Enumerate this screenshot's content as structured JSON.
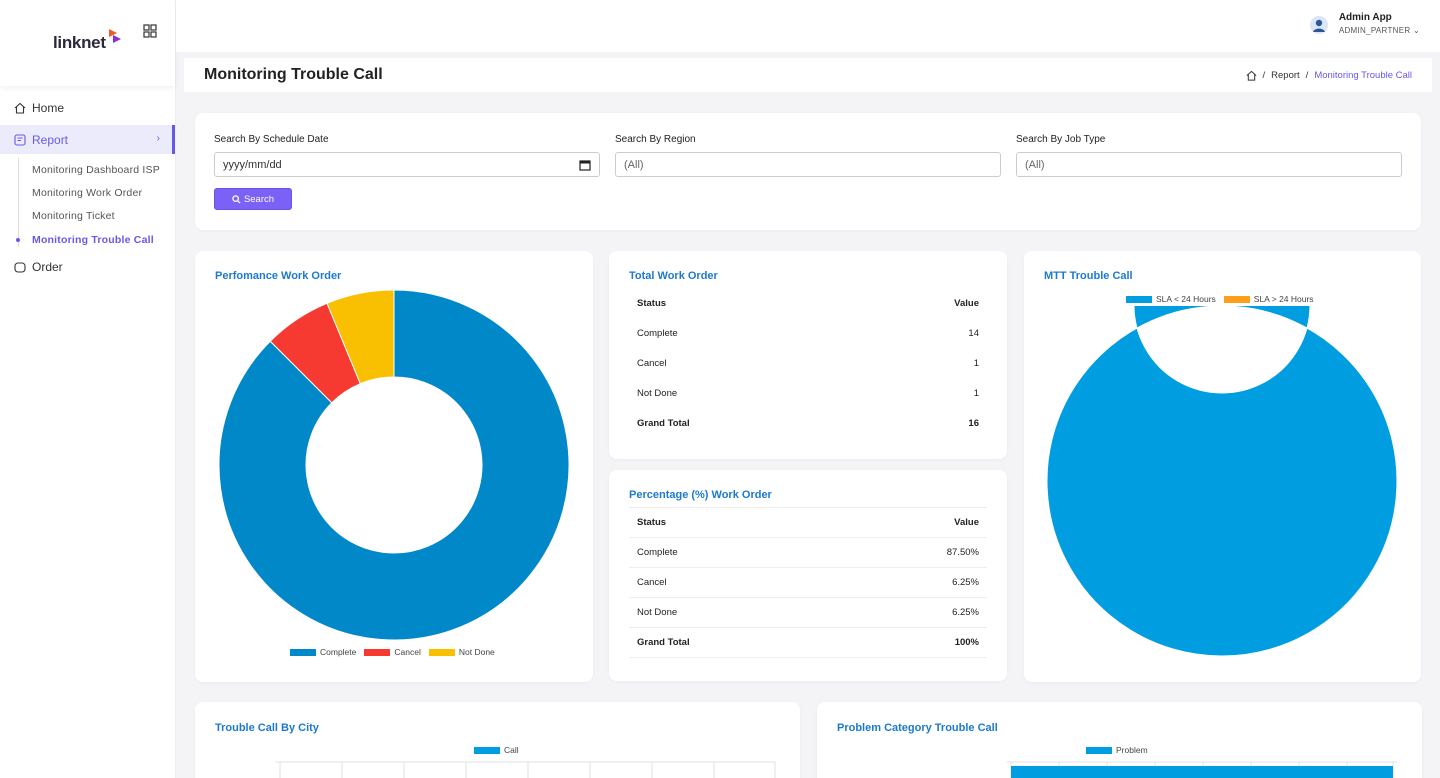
{
  "brand": {
    "logo_text": "linknet"
  },
  "user": {
    "name": "Admin App",
    "role": "ADMIN_PARTNER"
  },
  "sidebar": {
    "items": [
      {
        "label": "Home",
        "icon": "home-icon"
      },
      {
        "label": "Report",
        "icon": "report-icon",
        "active": true
      },
      {
        "label": "Order",
        "icon": "order-icon"
      }
    ],
    "report_sub": [
      {
        "label": "Monitoring Dashboard ISP"
      },
      {
        "label": "Monitoring Work Order"
      },
      {
        "label": "Monitoring Ticket"
      },
      {
        "label": "Monitoring Trouble Call",
        "active": true
      }
    ]
  },
  "page": {
    "title": "Monitoring Trouble Call",
    "breadcrumb": [
      "Report",
      "Monitoring Trouble Call"
    ]
  },
  "filters": {
    "date_label": "Search By Schedule Date",
    "date_placeholder": "yyyy/mm/dd",
    "region_label": "Search By Region",
    "region_value": "(All)",
    "jobtype_label": "Search By Job Type",
    "jobtype_value": "(All)",
    "search_label": "Search"
  },
  "performance": {
    "title": "Perfomance Work Order",
    "legend": [
      "Complete",
      "Cancel",
      "Not Done"
    ]
  },
  "total_wo": {
    "title": "Total Work Order",
    "header": [
      "Status",
      "Value"
    ],
    "rows": [
      [
        "Complete",
        "14"
      ],
      [
        "Cancel",
        "1"
      ],
      [
        "Not Done",
        "1"
      ]
    ],
    "total": [
      "Grand Total",
      "16"
    ]
  },
  "pct_wo": {
    "title": "Percentage (%) Work Order",
    "header": [
      "Status",
      "Value"
    ],
    "rows": [
      [
        "Complete",
        "87.50%"
      ],
      [
        "Cancel",
        "6.25%"
      ],
      [
        "Not Done",
        "6.25%"
      ]
    ],
    "total": [
      "Grand Total",
      "100%"
    ]
  },
  "mtt": {
    "title": "MTT Trouble Call",
    "legend": [
      "SLA < 24 Hours",
      "SLA > 24 Hours"
    ]
  },
  "city": {
    "title": "Trouble Call By City",
    "legend": "Call"
  },
  "problem": {
    "title": "Problem Category Trouble Call",
    "legend": "Problem"
  },
  "colors": {
    "accent": "#6759e8",
    "complete": "#0088c9",
    "cancel": "#f63a32",
    "not_done": "#f8c000",
    "sla_lt": "#009ee0",
    "sla_gt": "#ff9e1b"
  },
  "chart_data": [
    {
      "type": "pie",
      "title": "Perfomance Work Order",
      "categories": [
        "Complete",
        "Cancel",
        "Not Done"
      ],
      "values": [
        14,
        1,
        1
      ],
      "legend": "bottom"
    },
    {
      "type": "pie",
      "title": "MTT Trouble Call",
      "categories": [
        "SLA < 24 Hours",
        "SLA > 24 Hours"
      ],
      "values": [
        100,
        0
      ],
      "legend": "top"
    }
  ]
}
